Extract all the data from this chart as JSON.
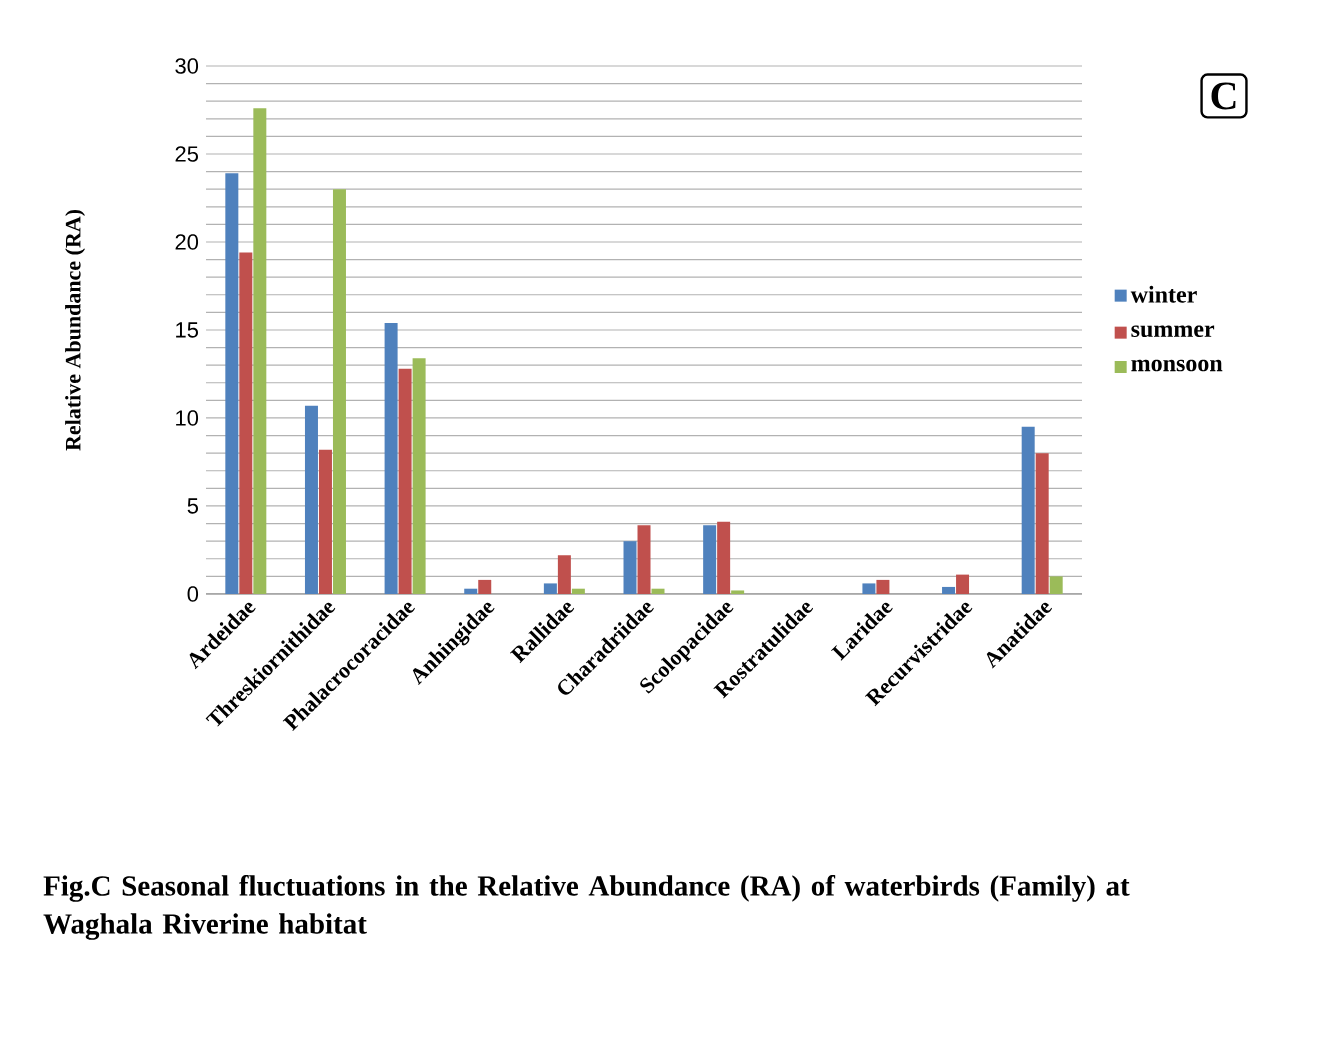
{
  "chart_data": {
    "type": "bar",
    "ylabel": "Relative Abundance (RA)",
    "categories": [
      "Ardeidae",
      "Threskiornithidae",
      "Phalacrocoracidae",
      "Anhingidae",
      "Rallidae",
      "Charadriidae",
      "Scolopacidae",
      "Rostratulidae",
      "Laridae",
      "Recurvistridae",
      "Anatidae"
    ],
    "series": [
      {
        "name": "winter",
        "color": "#4f81bd",
        "values": [
          23.9,
          10.7,
          15.4,
          0.3,
          0.6,
          3.0,
          3.9,
          0,
          0.6,
          0.4,
          9.5
        ]
      },
      {
        "name": "summer",
        "color": "#c0504d",
        "values": [
          19.4,
          8.2,
          12.8,
          0.8,
          2.2,
          3.9,
          4.1,
          0,
          0.8,
          1.1,
          8.0
        ]
      },
      {
        "name": "monsoon",
        "color": "#9bbb59",
        "values": [
          27.6,
          23.0,
          13.4,
          0,
          0.3,
          0.3,
          0.2,
          0,
          0,
          0,
          1.0
        ]
      }
    ],
    "ylim": [
      0,
      30
    ],
    "yticks": [
      0,
      {
        "value": 1,
        "label": null
      },
      {
        "value": 2,
        "label": null
      },
      {
        "value": 3,
        "label": null
      },
      {
        "value": 4,
        "label": null
      },
      5,
      {
        "value": 6,
        "label": null
      },
      {
        "value": 7,
        "label": null
      },
      {
        "value": 8,
        "label": null
      },
      {
        "value": 9,
        "label": null
      },
      10,
      {
        "value": 11,
        "label": null
      },
      {
        "value": 12,
        "label": null
      },
      {
        "value": 13,
        "label": null
      },
      {
        "value": 14,
        "label": null
      },
      15,
      {
        "value": 16,
        "label": null
      },
      {
        "value": 17,
        "label": null
      },
      {
        "value": 18,
        "label": null
      },
      {
        "value": 19,
        "label": null
      },
      20,
      {
        "value": 21,
        "label": null
      },
      {
        "value": 22,
        "label": null
      },
      {
        "value": 23,
        "label": null
      },
      {
        "value": 24,
        "label": null
      },
      25,
      {
        "value": 26,
        "label": null
      },
      {
        "value": 27,
        "label": null
      },
      {
        "value": 28,
        "label": null
      },
      {
        "value": 29,
        "label": null
      },
      30
    ],
    "grid": "y",
    "legend": "right",
    "annotations": [
      "C",
      "Fig.C Seasonal fluctuations in the Relative Abundance (RA) of waterbirds (Family) at Waghala Riverine habitat"
    ]
  }
}
